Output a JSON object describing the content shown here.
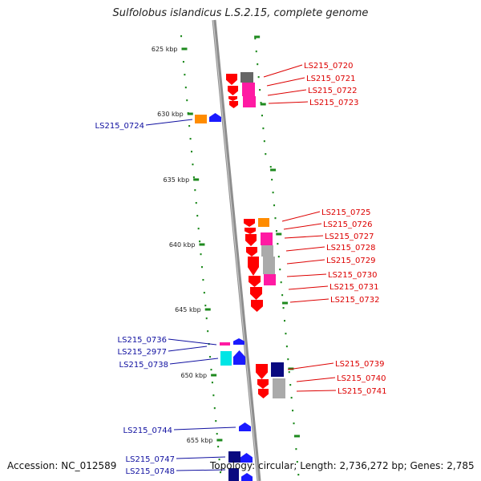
{
  "title": "Sulfolobus islandicus L.S.2.15, complete genome",
  "footer": {
    "accession": "Accession: NC_012589",
    "stats": "Topology: circular; Length: 2,736,272 bp; Genes: 2,785"
  },
  "colors": {
    "backbone": "#8e8e8e",
    "tick": "#1e8a1e",
    "label_right": "#dd0000",
    "label_left": "#1010a0",
    "gene_red": "#ff0000",
    "gene_magenta": "#ff1aa3",
    "gene_gray": "#aaaaaa",
    "gene_darkgray": "#666666",
    "gene_orange": "#ff8c00",
    "gene_blue": "#1a1aff",
    "gene_navy": "#0a0a80",
    "gene_cyan": "#00e5e5"
  },
  "kbp_labels": [
    "625 kbp",
    "630 kbp",
    "635 kbp",
    "640 kbp",
    "645 kbp",
    "650 kbp",
    "655 kbp"
  ],
  "right_labels": [
    "LS215_0720",
    "LS215_0721",
    "LS215_0722",
    "LS215_0723",
    "LS215_0725",
    "LS215_0726",
    "LS215_0727",
    "LS215_0728",
    "LS215_0729",
    "LS215_0730",
    "LS215_0731",
    "LS215_0732",
    "LS215_0739",
    "LS215_0740",
    "LS215_0741"
  ],
  "left_labels": [
    "LS215_0724",
    "LS215_0736",
    "LS215_2977",
    "LS215_0738",
    "LS215_0744",
    "LS215_0747",
    "LS215_0748"
  ]
}
